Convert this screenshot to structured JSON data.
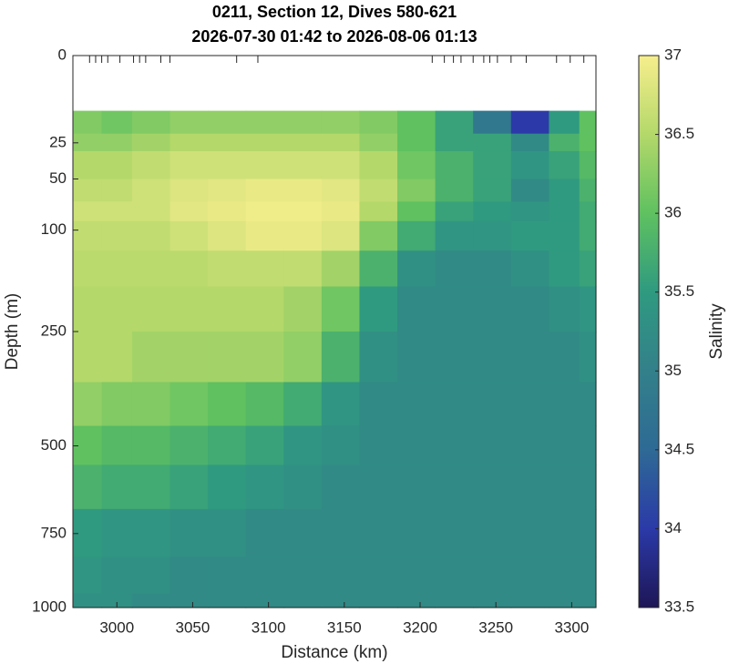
{
  "chart_data": {
    "type": "section",
    "title": [
      "0211, Section 12, Dives 580-621",
      "2026-07-30 01:42 to 2026-08-06 01:13"
    ],
    "x_label": "Distance (km)",
    "y_label": "Depth (m)",
    "colorbar_label": "Salinity",
    "xlim": [
      2971,
      3316
    ],
    "xticks": [
      3000,
      3050,
      3100,
      3150,
      3200,
      3250,
      3300
    ],
    "ylim": [
      0,
      1000
    ],
    "yscale": "sqrt",
    "y_reversed": true,
    "yticks": [
      0,
      25,
      50,
      100,
      250,
      500,
      750,
      1000
    ],
    "clim": [
      33.5,
      37
    ],
    "cticks": [
      33.5,
      34,
      34.5,
      35,
      35.5,
      36,
      36.5,
      37
    ],
    "colormap": [
      "#1e1656",
      "#2b3aa8",
      "#2e6a95",
      "#33808a",
      "#2f9a80",
      "#5fc160",
      "#b4d86a",
      "#f6ee8d"
    ],
    "dive_positions": [
      2982,
      2986,
      2990,
      2994,
      3002,
      3011,
      3015,
      3019,
      3029,
      3035,
      3079,
      3093,
      3208,
      3216,
      3222,
      3227,
      3235,
      3242,
      3246,
      3251,
      3260,
      3270,
      3290,
      3299,
      3308
    ],
    "x_edges": [
      2971,
      2990,
      3010,
      3035,
      3060,
      3085,
      3110,
      3135,
      3160,
      3185,
      3210,
      3235,
      3260,
      3285,
      3305,
      3316
    ],
    "depth_edges": [
      10,
      20,
      30,
      50,
      70,
      90,
      125,
      175,
      250,
      350,
      450,
      550,
      675,
      825,
      950,
      1000
    ],
    "z": [
      [
        36.2,
        36.1,
        36.2,
        36.3,
        36.3,
        36.3,
        36.3,
        36.3,
        36.2,
        36.0,
        35.6,
        34.8,
        34.0,
        35.5,
        36.0
      ],
      [
        36.3,
        36.3,
        36.4,
        36.5,
        36.5,
        36.5,
        36.5,
        36.5,
        36.3,
        36.0,
        35.6,
        35.6,
        35.2,
        35.8,
        36.0
      ],
      [
        36.5,
        36.5,
        36.6,
        36.7,
        36.7,
        36.7,
        36.7,
        36.7,
        36.5,
        36.1,
        35.8,
        35.6,
        35.4,
        35.6,
        35.9
      ],
      [
        36.6,
        36.6,
        36.7,
        36.8,
        36.85,
        36.9,
        36.9,
        36.85,
        36.6,
        36.2,
        35.8,
        35.6,
        35.2,
        35.5,
        35.8
      ],
      [
        36.7,
        36.7,
        36.7,
        36.85,
        36.9,
        36.95,
        36.95,
        36.9,
        36.5,
        36.0,
        35.6,
        35.5,
        35.4,
        35.5,
        35.7
      ],
      [
        36.6,
        36.6,
        36.6,
        36.7,
        36.8,
        36.9,
        36.9,
        36.8,
        36.2,
        35.7,
        35.4,
        35.4,
        35.5,
        35.5,
        35.7
      ],
      [
        36.55,
        36.55,
        36.55,
        36.55,
        36.6,
        36.6,
        36.6,
        36.4,
        35.8,
        35.3,
        35.2,
        35.2,
        35.3,
        35.5,
        35.6
      ],
      [
        36.5,
        36.5,
        36.5,
        36.5,
        36.5,
        36.5,
        36.4,
        36.1,
        35.5,
        35.2,
        35.2,
        35.2,
        35.2,
        35.3,
        35.4
      ],
      [
        36.5,
        36.5,
        36.4,
        36.4,
        36.4,
        36.4,
        36.3,
        35.8,
        35.3,
        35.2,
        35.2,
        35.2,
        35.2,
        35.2,
        35.3
      ],
      [
        36.3,
        36.2,
        36.2,
        36.1,
        36.0,
        35.9,
        35.7,
        35.4,
        35.2,
        35.2,
        35.2,
        35.2,
        35.2,
        35.2,
        35.2
      ],
      [
        36.0,
        35.9,
        35.9,
        35.8,
        35.7,
        35.6,
        35.4,
        35.3,
        35.2,
        35.2,
        35.2,
        35.2,
        35.2,
        35.2,
        35.2
      ],
      [
        35.8,
        35.7,
        35.7,
        35.6,
        35.5,
        35.4,
        35.3,
        35.2,
        35.2,
        35.2,
        35.2,
        35.2,
        35.2,
        35.2,
        35.2
      ],
      [
        35.5,
        35.4,
        35.4,
        35.3,
        35.3,
        35.2,
        35.2,
        35.2,
        35.2,
        35.2,
        35.2,
        35.2,
        35.2,
        35.2,
        35.2
      ],
      [
        35.4,
        35.3,
        35.3,
        35.2,
        35.2,
        35.2,
        35.2,
        35.2,
        35.2,
        35.2,
        35.2,
        35.2,
        35.2,
        35.2,
        35.2
      ],
      [
        35.3,
        35.3,
        35.2,
        35.2,
        35.2,
        35.2,
        35.2,
        35.2,
        35.2,
        35.2,
        35.2,
        35.2,
        35.2,
        35.2,
        35.2
      ]
    ]
  }
}
